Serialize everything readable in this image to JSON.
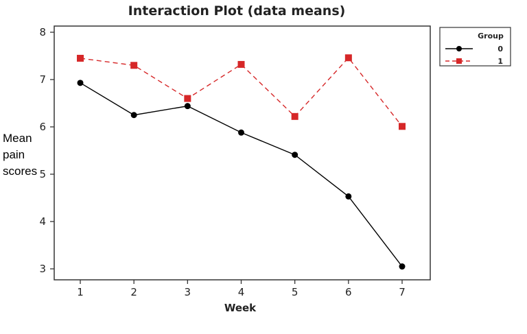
{
  "chart_data": {
    "type": "line",
    "title": "Interaction Plot (data means)",
    "xlabel": "Week",
    "ylabel_lines": [
      "Mean",
      "pain",
      "scores"
    ],
    "x": [
      1,
      2,
      3,
      4,
      5,
      6,
      7
    ],
    "xlim": [
      0.5,
      7.5
    ],
    "ylim": [
      2.8,
      8.0
    ],
    "yticks": [
      3,
      4,
      5,
      6,
      7,
      8
    ],
    "grid": false,
    "legend": {
      "title": "Group",
      "placement": "top-right, outside plot"
    },
    "series": [
      {
        "name": "0",
        "values": [
          6.93,
          6.25,
          6.44,
          5.88,
          5.41,
          4.53,
          3.05
        ],
        "color": "#000000",
        "line_style": "solid",
        "marker": "circle"
      },
      {
        "name": "1",
        "values": [
          7.45,
          7.3,
          6.6,
          7.32,
          6.22,
          7.46,
          6.01
        ],
        "color": "#d62728",
        "line_style": "dashed",
        "marker": "square"
      }
    ]
  }
}
